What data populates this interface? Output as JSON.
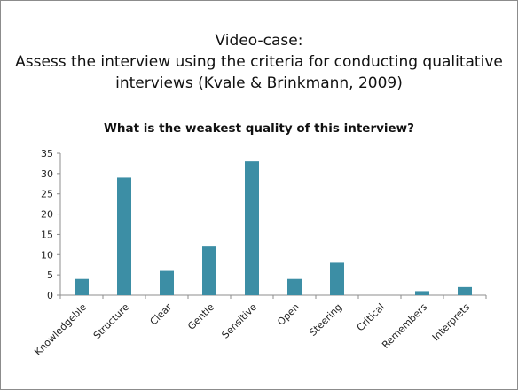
{
  "slide": {
    "line1": "Video-case:",
    "line2": "Assess the interview using the criteria for conducting qualitative",
    "line3": "interviews (Kvale & Brinkmann, 2009)"
  },
  "chart_data": {
    "type": "bar",
    "title": "What is the weakest quality of this interview?",
    "categories": [
      "Knowledgeble",
      "Structure",
      "Clear",
      "Gentle",
      "Sensitive",
      "Open",
      "Steering",
      "Critical",
      "Remembers",
      "Interprets"
    ],
    "values": [
      4,
      29,
      6,
      12,
      33,
      4,
      8,
      0,
      1,
      2
    ],
    "ylim": [
      0,
      35
    ],
    "yticks": [
      0,
      5,
      10,
      15,
      20,
      25,
      30,
      35
    ],
    "bar_color": "#3c8ea5",
    "grid": false,
    "legend": "none"
  }
}
